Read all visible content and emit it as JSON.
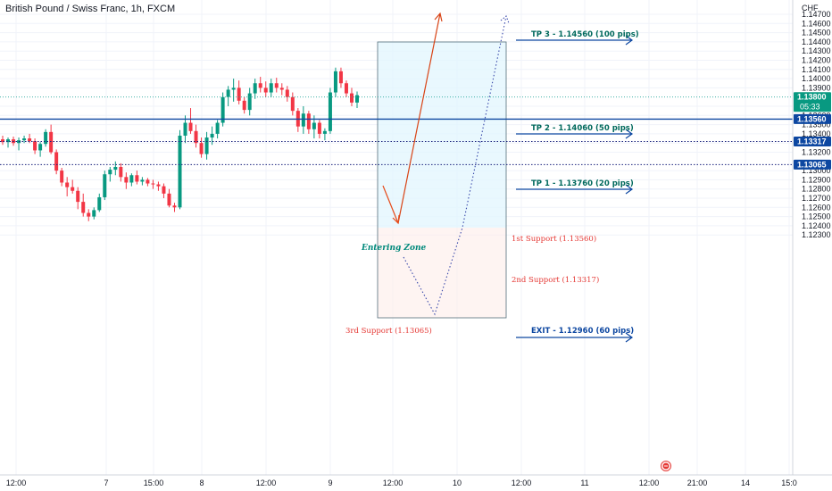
{
  "title": "British Pound / Swiss Franc, 1h, FXCM",
  "currency": "CHF",
  "colors": {
    "up": "#089981",
    "down": "#f23645",
    "blue": "#0d47a1",
    "teal": "#00897b",
    "red_text": "#e53935",
    "grid": "#f0f3fa"
  },
  "price_axis": {
    "ticks": [
      "1.14700",
      "1.14600",
      "1.14500",
      "1.14400",
      "1.14300",
      "1.14200",
      "1.14100",
      "1.14000",
      "1.13900",
      "1.13700",
      "1.13600",
      "1.13500",
      "1.13400",
      "1.13300",
      "1.13200",
      "1.13000",
      "1.12900",
      "1.12800",
      "1.12700",
      "1.12600",
      "1.12500",
      "1.12400",
      "1.12300"
    ],
    "tick_values": [
      1.147,
      1.146,
      1.145,
      1.144,
      1.143,
      1.142,
      1.141,
      1.14,
      1.139,
      1.137,
      1.136,
      1.135,
      1.134,
      1.133,
      1.132,
      1.13,
      1.129,
      1.128,
      1.127,
      1.126,
      1.125,
      1.124,
      1.123
    ],
    "badges": [
      {
        "value": 1.138,
        "label": "1.13800",
        "sub": "05:33",
        "color": "#089981"
      },
      {
        "value": 1.1356,
        "label": "1.13560",
        "color": "#0d47a1"
      },
      {
        "value": 1.13317,
        "label": "1.13317",
        "color": "#0d47a1"
      },
      {
        "value": 1.13065,
        "label": "1.13065",
        "color": "#0d47a1"
      }
    ]
  },
  "time_axis": {
    "labels": [
      "12:00",
      "7",
      "15:00",
      "8",
      "12:00",
      "9",
      "12:00",
      "10",
      "12:00",
      "11",
      "12:00",
      "21:00",
      "14",
      "15:0"
    ]
  },
  "annotations": {
    "tp3": "TP 3 - 1.14560 (100 pips)",
    "tp2": "TP 2 - 1.14060 (50 pips)",
    "tp1": "TP 1 - 1.13760 (20 pips)",
    "exit": "EXIT - 1.12960 (60 pips)",
    "support1": "1st Support (1.13560)",
    "support2": "2nd Support (1.13317)",
    "support3": "3rd Support (1.13065)",
    "entering_zone": "Entering Zone"
  },
  "chart_data": {
    "type": "candlestick",
    "symbol": "GBPCHF",
    "timeframe": "1h",
    "y_range": [
      1.1225,
      1.1475
    ],
    "candles": [
      [
        1.1334,
        1.1338,
        1.1328,
        1.1331
      ],
      [
        1.1331,
        1.1336,
        1.1325,
        1.1334
      ],
      [
        1.1334,
        1.1337,
        1.1327,
        1.133
      ],
      [
        1.133,
        1.1336,
        1.1322,
        1.1333
      ],
      [
        1.1333,
        1.1338,
        1.133,
        1.1335
      ],
      [
        1.1335,
        1.134,
        1.133,
        1.1332
      ],
      [
        1.1332,
        1.1335,
        1.1318,
        1.1322
      ],
      [
        1.1322,
        1.1331,
        1.1315,
        1.1329
      ],
      [
        1.1329,
        1.1345,
        1.1326,
        1.1342
      ],
      [
        1.1342,
        1.135,
        1.1318,
        1.132
      ],
      [
        1.132,
        1.1323,
        1.1296,
        1.13
      ],
      [
        1.13,
        1.1303,
        1.1283,
        1.1287
      ],
      [
        1.1287,
        1.1293,
        1.1272,
        1.1282
      ],
      [
        1.1282,
        1.129,
        1.1275,
        1.1278
      ],
      [
        1.1278,
        1.1282,
        1.1258,
        1.1266
      ],
      [
        1.1266,
        1.1275,
        1.125,
        1.1254
      ],
      [
        1.1254,
        1.1258,
        1.1245,
        1.125
      ],
      [
        1.125,
        1.126,
        1.1247,
        1.1257
      ],
      [
        1.1257,
        1.1275,
        1.1255,
        1.1271
      ],
      [
        1.1271,
        1.13,
        1.1268,
        1.1296
      ],
      [
        1.1296,
        1.1304,
        1.1288,
        1.1301
      ],
      [
        1.1301,
        1.131,
        1.1295,
        1.1304
      ],
      [
        1.1304,
        1.1308,
        1.1288,
        1.1293
      ],
      [
        1.1293,
        1.1298,
        1.128,
        1.1287
      ],
      [
        1.1287,
        1.1297,
        1.1283,
        1.1295
      ],
      [
        1.1295,
        1.13,
        1.1285,
        1.1288
      ],
      [
        1.1288,
        1.1293,
        1.1284,
        1.129
      ],
      [
        1.129,
        1.1292,
        1.1283,
        1.1286
      ],
      [
        1.1286,
        1.129,
        1.128,
        1.1285
      ],
      [
        1.1285,
        1.1288,
        1.1278,
        1.1283
      ],
      [
        1.1283,
        1.1286,
        1.127,
        1.1275
      ],
      [
        1.1275,
        1.128,
        1.126,
        1.1262
      ],
      [
        1.1262,
        1.1265,
        1.1255,
        1.126
      ],
      [
        1.126,
        1.1344,
        1.1258,
        1.1338
      ],
      [
        1.1338,
        1.136,
        1.133,
        1.1352
      ],
      [
        1.1352,
        1.1368,
        1.134,
        1.1343
      ],
      [
        1.1343,
        1.135,
        1.1325,
        1.133
      ],
      [
        1.133,
        1.1336,
        1.1314,
        1.1318
      ],
      [
        1.1318,
        1.1342,
        1.1312,
        1.1336
      ],
      [
        1.1336,
        1.1348,
        1.1328,
        1.134
      ],
      [
        1.134,
        1.1355,
        1.1335,
        1.1352
      ],
      [
        1.1352,
        1.1385,
        1.1348,
        1.138
      ],
      [
        1.138,
        1.1392,
        1.137,
        1.1388
      ],
      [
        1.1388,
        1.14,
        1.1375,
        1.139
      ],
      [
        1.139,
        1.1398,
        1.1372,
        1.1376
      ],
      [
        1.1376,
        1.138,
        1.1362,
        1.1366
      ],
      [
        1.1366,
        1.139,
        1.136,
        1.1384
      ],
      [
        1.1384,
        1.14,
        1.1378,
        1.1395
      ],
      [
        1.1395,
        1.1402,
        1.1385,
        1.139
      ],
      [
        1.139,
        1.1397,
        1.138,
        1.1385
      ],
      [
        1.1385,
        1.14,
        1.138,
        1.1395
      ],
      [
        1.1395,
        1.1401,
        1.1385,
        1.139
      ],
      [
        1.139,
        1.1395,
        1.1382,
        1.1388
      ],
      [
        1.1388,
        1.1392,
        1.1375,
        1.138
      ],
      [
        1.138,
        1.1385,
        1.136,
        1.1365
      ],
      [
        1.1365,
        1.1368,
        1.1342,
        1.1348
      ],
      [
        1.1348,
        1.137,
        1.134,
        1.1362
      ],
      [
        1.1362,
        1.1365,
        1.134,
        1.1345
      ],
      [
        1.1345,
        1.136,
        1.1335,
        1.1352
      ],
      [
        1.1352,
        1.1355,
        1.1335,
        1.134
      ],
      [
        1.134,
        1.1346,
        1.1333,
        1.1343
      ],
      [
        1.1343,
        1.139,
        1.134,
        1.1385
      ],
      [
        1.1385,
        1.1412,
        1.138,
        1.1408
      ],
      [
        1.1408,
        1.1412,
        1.139,
        1.1395
      ],
      [
        1.1395,
        1.1398,
        1.138,
        1.1384
      ],
      [
        1.1384,
        1.139,
        1.137,
        1.1374
      ],
      [
        1.1374,
        1.1386,
        1.1368,
        1.1382
      ]
    ]
  }
}
